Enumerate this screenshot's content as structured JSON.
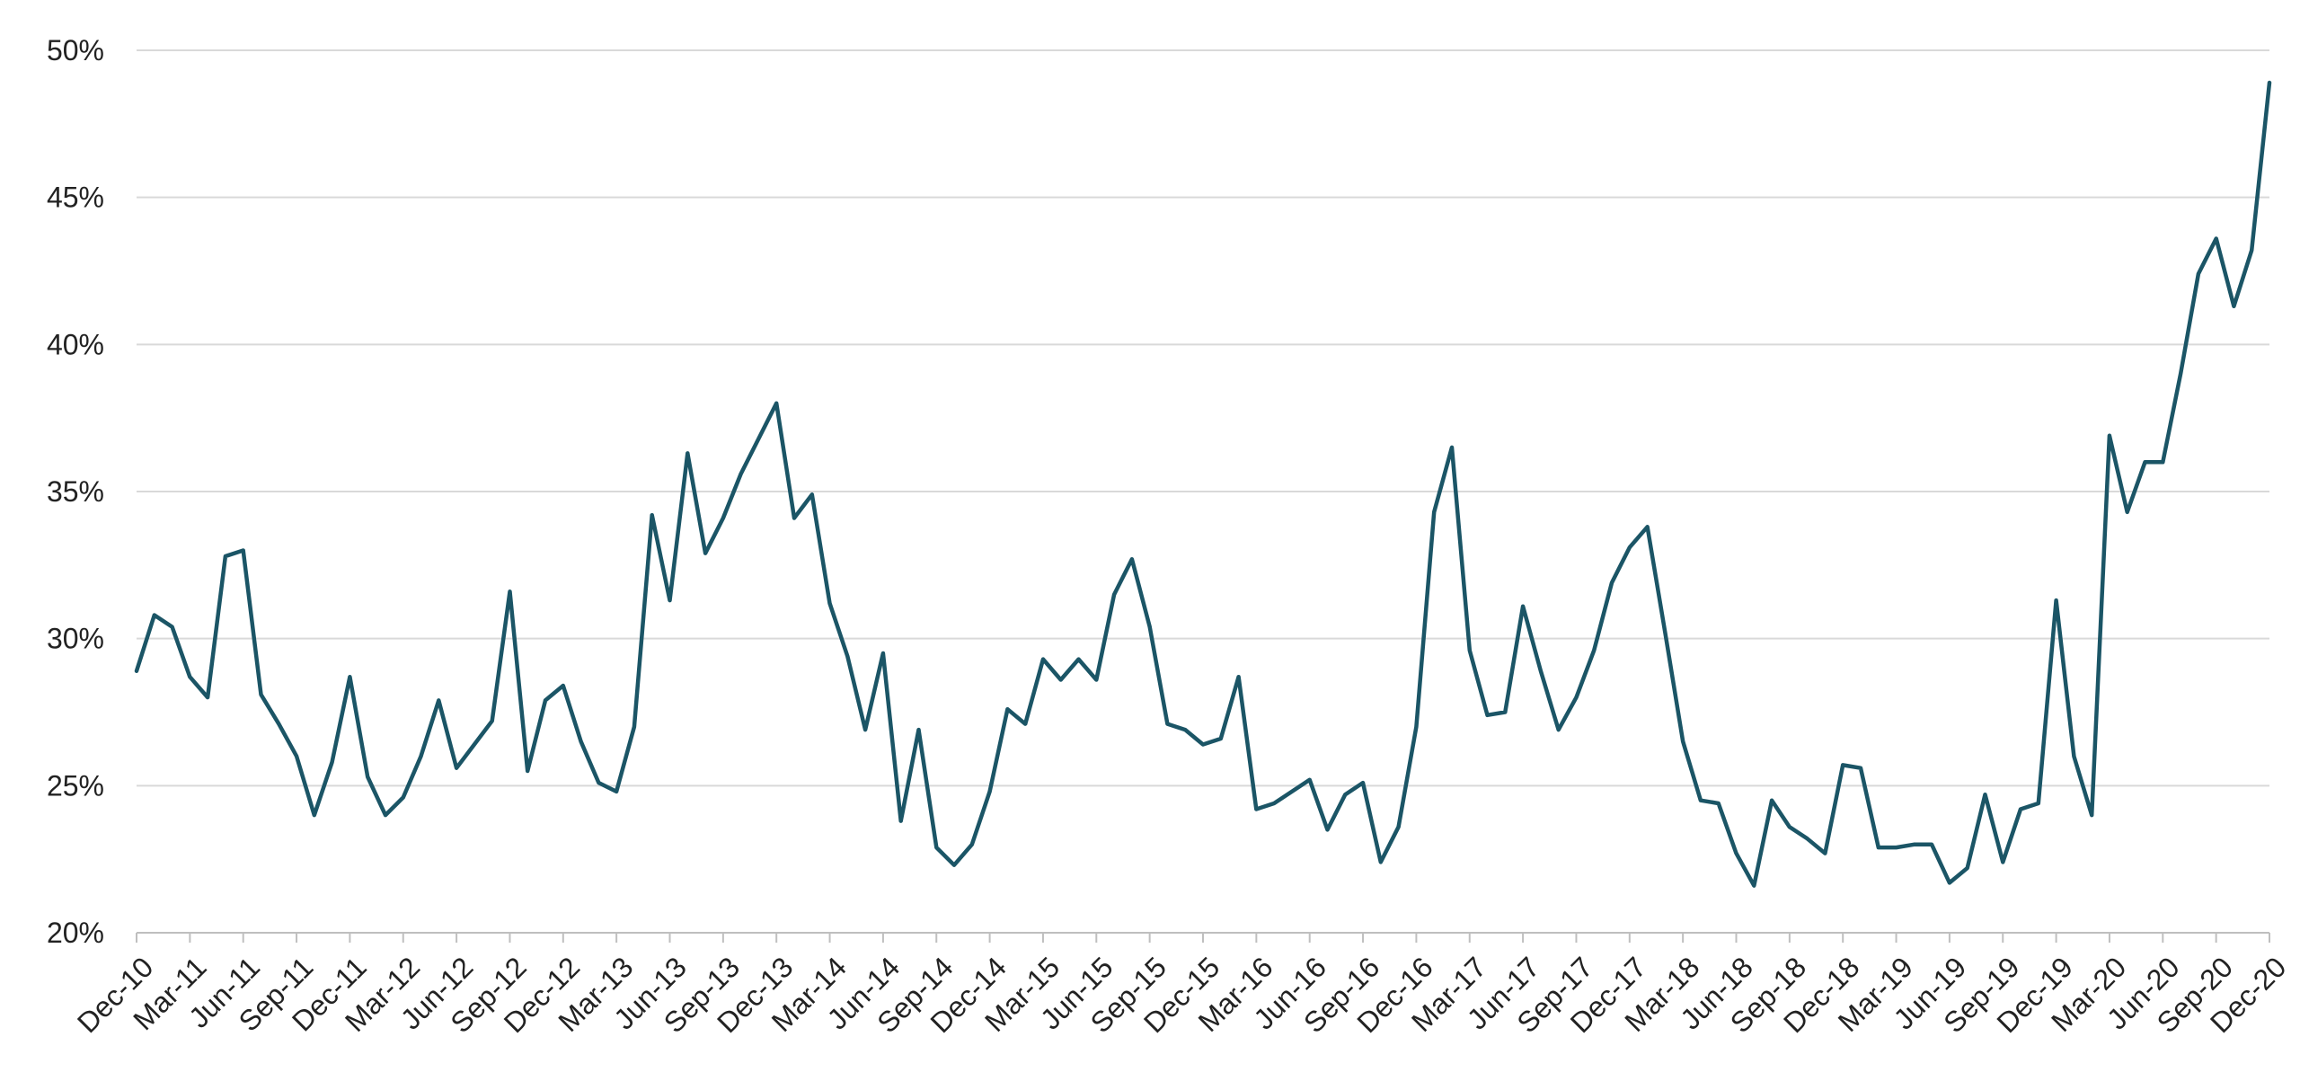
{
  "chart_data": {
    "type": "line",
    "title": "",
    "xlabel": "",
    "ylabel": "",
    "ylim": [
      20,
      50
    ],
    "yticks": [
      "20%",
      "25%",
      "30%",
      "35%",
      "40%",
      "45%",
      "50%"
    ],
    "ytick_values": [
      20,
      25,
      30,
      35,
      40,
      45,
      50
    ],
    "grid": true,
    "legend": "none",
    "line_color": "#1b5566",
    "x_tick_labels": [
      "Dec-10",
      "Mar-11",
      "Jun-11",
      "Sep-11",
      "Dec-11",
      "Mar-12",
      "Jun-12",
      "Sep-12",
      "Dec-12",
      "Mar-13",
      "Jun-13",
      "Sep-13",
      "Dec-13",
      "Mar-14",
      "Jun-14",
      "Sep-14",
      "Dec-14",
      "Mar-15",
      "Jun-15",
      "Sep-15",
      "Dec-15",
      "Mar-16",
      "Jun-16",
      "Sep-16",
      "Dec-16",
      "Mar-17",
      "Jun-17",
      "Sep-17",
      "Dec-17",
      "Mar-18",
      "Jun-18",
      "Sep-18",
      "Dec-18",
      "Mar-19",
      "Jun-19",
      "Sep-19",
      "Dec-19",
      "Mar-20",
      "Jun-20",
      "Sep-20",
      "Dec-20"
    ],
    "x_start": "Dec-10",
    "x_end": "Dec-20",
    "series": [
      {
        "values": [
          28.9,
          30.8,
          30.4,
          28.7,
          28.0,
          32.8,
          33.0,
          28.1,
          27.1,
          26.0,
          24.0,
          25.8,
          28.7,
          25.3,
          24.0,
          24.6,
          26.0,
          27.9,
          25.6,
          26.4,
          27.2,
          31.6,
          25.5,
          27.9,
          28.4,
          26.5,
          25.1,
          24.8,
          27.0,
          34.2,
          31.3,
          36.3,
          32.9,
          34.1,
          35.6,
          36.8,
          38.0,
          34.1,
          34.9,
          31.2,
          29.4,
          26.9,
          29.5,
          23.8,
          26.9,
          22.9,
          22.3,
          23.0,
          24.8,
          27.6,
          27.1,
          29.3,
          28.6,
          29.3,
          28.6,
          31.5,
          32.7,
          30.4,
          27.1,
          26.9,
          26.4,
          26.6,
          28.7,
          24.2,
          24.4,
          24.8,
          25.2,
          23.5,
          24.7,
          25.1,
          22.4,
          23.6,
          27.0,
          34.3,
          36.5,
          29.6,
          27.4,
          27.5,
          31.1,
          28.9,
          26.9,
          28.0,
          29.6,
          31.9,
          33.1,
          33.8,
          30.2,
          26.5,
          24.5,
          24.4,
          22.7,
          21.6,
          24.5,
          23.6,
          23.2,
          22.7,
          25.7,
          25.6,
          22.9,
          22.9,
          23.0,
          23.0,
          21.7,
          22.2,
          24.7,
          22.4,
          24.2,
          24.4,
          31.3,
          26.0,
          24.0,
          36.9,
          34.3,
          36.0,
          36.0,
          39.0,
          42.4,
          43.6,
          41.3,
          43.2,
          48.9
        ]
      }
    ]
  }
}
